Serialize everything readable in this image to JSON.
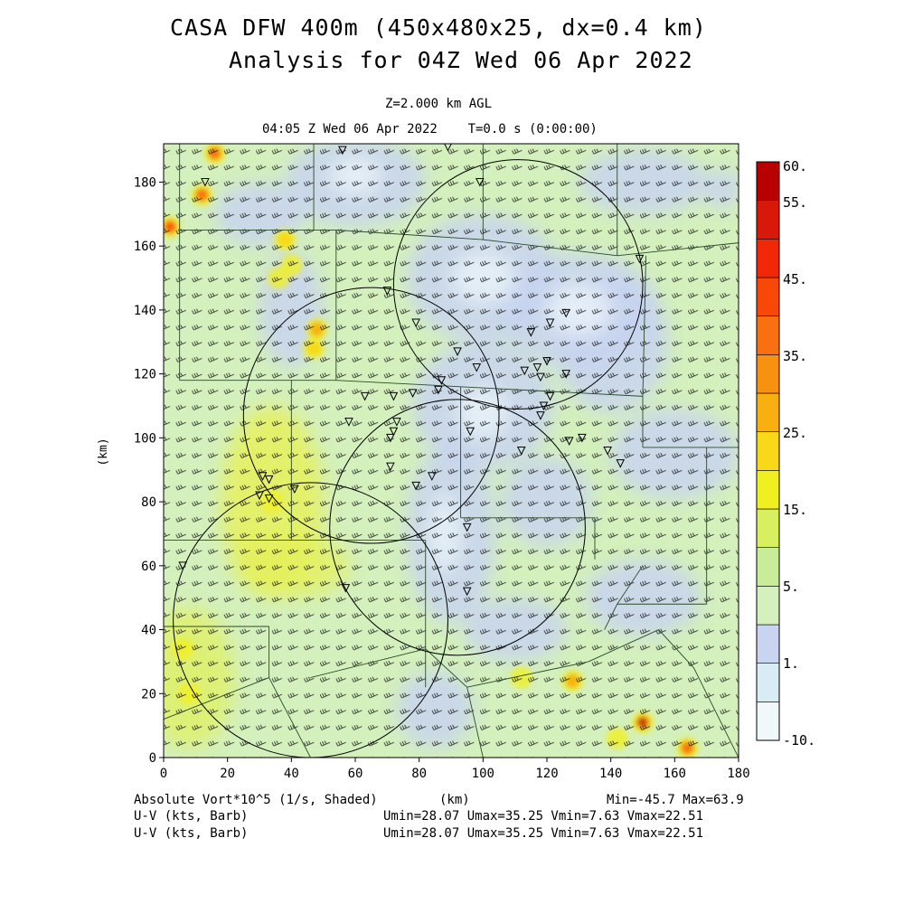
{
  "header": {
    "title_line1": "CASA DFW 400m (450x480x25, dx=0.4 km)",
    "title_line2": "Analysis for 04Z Wed 06 Apr 2022",
    "level": "Z=2.000 km AGL",
    "valid_time": "04:05 Z Wed 06 Apr 2022    T=0.0 s (0:00:00)"
  },
  "footer": {
    "field_label": "Absolute Vort*10^5 (1/s, Shaded)",
    "x_unit": "(km)",
    "field_range": "Min=-45.7 Max=63.9",
    "barb_label_1": "U-V (kts, Barb)",
    "barb_range_1": "Umin=28.07 Umax=35.25 Vmin=7.63 Vmax=22.51",
    "barb_label_2": "U-V (kts, Barb)",
    "barb_range_2": "Umin=28.07 Umax=35.25 Vmin=7.63 Vmax=22.51"
  },
  "colorbar": {
    "labels": [
      "60.",
      "55.",
      "45.",
      "35.",
      "25.",
      "15.",
      "5.",
      "1.",
      "-10."
    ],
    "colors": [
      "#f0f8fc",
      "#d8ecf6",
      "#c8d4f0",
      "#d4f0bc",
      "#c8ec98",
      "#d8f060",
      "#f0f020",
      "#f8d818",
      "#f8b010",
      "#f89010",
      "#f87010",
      "#f84808",
      "#f02808",
      "#d81808",
      "#b80000"
    ]
  },
  "chart_data": {
    "type": "heatmap",
    "field": "Absolute Vort*10^5 (1/s)",
    "xlabel": "(km)",
    "ylabel": "(km)",
    "xlim": [
      0,
      180
    ],
    "ylim": [
      0,
      192
    ],
    "xticks": [
      0,
      20,
      40,
      60,
      80,
      100,
      120,
      140,
      160,
      180
    ],
    "yticks": [
      0,
      20,
      40,
      60,
      80,
      100,
      120,
      140,
      160,
      180
    ],
    "min": -45.7,
    "max": 63.9,
    "wind_barbs": {
      "umin": 28.07,
      "umax": 35.25,
      "vmin": 7.63,
      "vmax": 22.51,
      "units": "kts"
    },
    "radar_rings": [
      {
        "center": [
          65,
          107
        ],
        "radius": 40
      },
      {
        "center": [
          111,
          148
        ],
        "radius": 39
      },
      {
        "center": [
          92,
          72
        ],
        "radius": 40
      },
      {
        "center": [
          46,
          43
        ],
        "radius": 43
      }
    ],
    "stations": [
      [
        56,
        190
      ],
      [
        89,
        191
      ],
      [
        13,
        180
      ],
      [
        99,
        180
      ],
      [
        149,
        156
      ],
      [
        70,
        146
      ],
      [
        79,
        136
      ],
      [
        126,
        139
      ],
      [
        121,
        136
      ],
      [
        115,
        133
      ],
      [
        92,
        127
      ],
      [
        98,
        122
      ],
      [
        120,
        124
      ],
      [
        117,
        122
      ],
      [
        113,
        121
      ],
      [
        118,
        119
      ],
      [
        126,
        120
      ],
      [
        72,
        113
      ],
      [
        78,
        114
      ],
      [
        86,
        115
      ],
      [
        87,
        118
      ],
      [
        63,
        113
      ],
      [
        121,
        113
      ],
      [
        119,
        110
      ],
      [
        118,
        107
      ],
      [
        58,
        105
      ],
      [
        73,
        105
      ],
      [
        72,
        102
      ],
      [
        71,
        100
      ],
      [
        96,
        102
      ],
      [
        131,
        100
      ],
      [
        127,
        99
      ],
      [
        112,
        96
      ],
      [
        139,
        96
      ],
      [
        143,
        92
      ],
      [
        71,
        91
      ],
      [
        31,
        88
      ],
      [
        33,
        87
      ],
      [
        84,
        88
      ],
      [
        79,
        85
      ],
      [
        30,
        82
      ],
      [
        33,
        81
      ],
      [
        41,
        84
      ],
      [
        95,
        72
      ],
      [
        6,
        60
      ],
      [
        57,
        53
      ],
      [
        95,
        52
      ]
    ],
    "hotspots": [
      {
        "x": 16,
        "y": 189,
        "v": 40
      },
      {
        "x": 12,
        "y": 176,
        "v": 42
      },
      {
        "x": 2,
        "y": 166,
        "v": 45
      },
      {
        "x": 38,
        "y": 162,
        "v": 28
      },
      {
        "x": 36,
        "y": 150,
        "v": 22
      },
      {
        "x": 40,
        "y": 154,
        "v": 20
      },
      {
        "x": 48,
        "y": 134,
        "v": 30
      },
      {
        "x": 47,
        "y": 128,
        "v": 25
      },
      {
        "x": 128,
        "y": 24,
        "v": 34
      },
      {
        "x": 112,
        "y": 25,
        "v": 20
      },
      {
        "x": 150,
        "y": 11,
        "v": 60
      },
      {
        "x": 164,
        "y": 3,
        "v": 40
      },
      {
        "x": 142,
        "y": 6,
        "v": 20
      },
      {
        "x": 34,
        "y": 80,
        "v": 18
      },
      {
        "x": 6,
        "y": 34,
        "v": 17
      },
      {
        "x": 8,
        "y": 20,
        "v": 16
      }
    ],
    "light_regions": [
      {
        "x": 60,
        "y": 180,
        "rx": 22,
        "ry": 14
      },
      {
        "x": 100,
        "y": 150,
        "rx": 24,
        "ry": 20
      },
      {
        "x": 130,
        "y": 140,
        "rx": 25,
        "ry": 18
      },
      {
        "x": 100,
        "y": 110,
        "rx": 22,
        "ry": 20
      },
      {
        "x": 90,
        "y": 70,
        "rx": 14,
        "ry": 28
      },
      {
        "x": 120,
        "y": 80,
        "rx": 14,
        "ry": 14
      },
      {
        "x": 160,
        "y": 95,
        "rx": 20,
        "ry": 14
      },
      {
        "x": 150,
        "y": 50,
        "rx": 18,
        "ry": 12
      },
      {
        "x": 110,
        "y": 40,
        "rx": 16,
        "ry": 10
      },
      {
        "x": 85,
        "y": 15,
        "rx": 12,
        "ry": 12
      },
      {
        "x": 140,
        "y": 130,
        "rx": 18,
        "ry": 22
      },
      {
        "x": 40,
        "y": 140,
        "rx": 10,
        "ry": 18
      },
      {
        "x": 30,
        "y": 170,
        "rx": 14,
        "ry": 10
      },
      {
        "x": 150,
        "y": 180,
        "rx": 20,
        "ry": 10
      },
      {
        "x": 175,
        "y": 178,
        "rx": 6,
        "ry": 6
      }
    ],
    "county_lines": [
      [
        [
          5,
          192
        ],
        [
          5,
          118
        ]
      ],
      [
        [
          5,
          165
        ],
        [
          54,
          165
        ]
      ],
      [
        [
          54,
          165
        ],
        [
          54,
          118
        ]
      ],
      [
        [
          5,
          118
        ],
        [
          54,
          118
        ]
      ],
      [
        [
          54,
          165
        ],
        [
          100,
          162
        ]
      ],
      [
        [
          100,
          162
        ],
        [
          100,
          192
        ]
      ],
      [
        [
          47,
          192
        ],
        [
          47,
          165
        ]
      ],
      [
        [
          100,
          162
        ],
        [
          142,
          157
        ]
      ],
      [
        [
          142,
          157
        ],
        [
          142,
          192
        ]
      ],
      [
        [
          142,
          157
        ],
        [
          180,
          161
        ]
      ],
      [
        [
          54,
          118
        ],
        [
          93,
          116
        ]
      ],
      [
        [
          93,
          116
        ],
        [
          150,
          113
        ]
      ],
      [
        [
          150,
          113
        ],
        [
          151,
          157
        ]
      ],
      [
        [
          93,
          116
        ],
        [
          93,
          75
        ]
      ],
      [
        [
          93,
          75
        ],
        [
          135,
          75
        ]
      ],
      [
        [
          135,
          75
        ],
        [
          135,
          62
        ]
      ],
      [
        [
          150,
          113
        ],
        [
          150,
          97
        ]
      ],
      [
        [
          150,
          97
        ],
        [
          180,
          97
        ]
      ],
      [
        [
          170,
          97
        ],
        [
          170,
          48
        ]
      ],
      [
        [
          170,
          48
        ],
        [
          142,
          48
        ]
      ],
      [
        [
          40,
          118
        ],
        [
          40,
          68
        ]
      ],
      [
        [
          0,
          68
        ],
        [
          40,
          68
        ]
      ],
      [
        [
          40,
          68
        ],
        [
          82,
          68
        ]
      ],
      [
        [
          82,
          68
        ],
        [
          82,
          22
        ]
      ],
      [
        [
          0,
          41
        ],
        [
          33,
          41
        ]
      ],
      [
        [
          33,
          41
        ],
        [
          33,
          25
        ]
      ],
      [
        [
          33,
          25
        ],
        [
          0,
          12
        ]
      ],
      [
        [
          33,
          25
        ],
        [
          46,
          0
        ]
      ],
      [
        [
          46,
          25
        ],
        [
          82,
          34
        ]
      ],
      [
        [
          82,
          34
        ],
        [
          95,
          22
        ]
      ],
      [
        [
          95,
          22
        ],
        [
          100,
          0
        ]
      ],
      [
        [
          95,
          22
        ],
        [
          133,
          30
        ]
      ],
      [
        [
          133,
          30
        ],
        [
          155,
          40
        ]
      ],
      [
        [
          155,
          40
        ],
        [
          166,
          28
        ]
      ],
      [
        [
          166,
          28
        ],
        [
          180,
          0
        ]
      ],
      [
        [
          150,
          60
        ],
        [
          142,
          48
        ]
      ],
      [
        [
          142,
          48
        ],
        [
          138,
          40
        ]
      ]
    ]
  }
}
